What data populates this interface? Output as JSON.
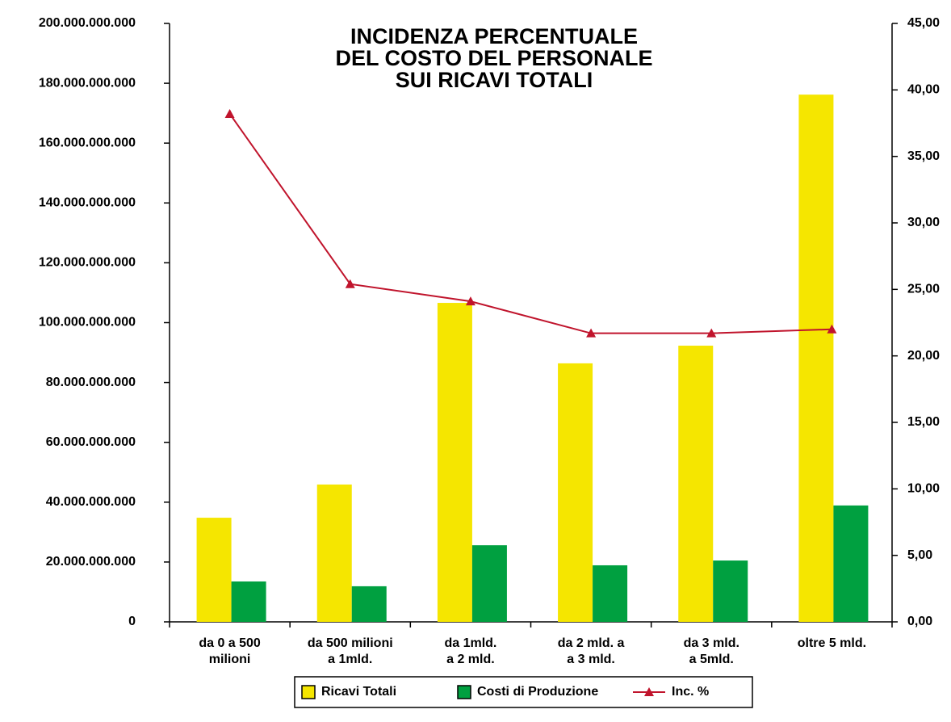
{
  "chart_data": {
    "type": "bar",
    "title": "INCIDENZA PERCENTUALE\nDEL COSTO DEL PERSONALE\nSUI RICAVI TOTALI",
    "categories": [
      "da 0 a 500\nmilioni",
      "da 500 milioni\na 1mld.",
      "da 1mld.\na 2 mld.",
      "da 2 mld. a\na 3 mld.",
      "da 3 mld.\na 5mld.",
      "oltre 5 mld."
    ],
    "series": [
      {
        "name": "Ricavi Totali",
        "color": "#f5e600",
        "type": "bar",
        "values": [
          34800000000,
          45900000000,
          106600000000,
          86400000000,
          92300000000,
          176200000000
        ]
      },
      {
        "name": "Costi di Produzione",
        "color": "#00a040",
        "type": "bar",
        "values": [
          13500000000,
          11900000000,
          25600000000,
          18900000000,
          20500000000,
          38900000000
        ]
      },
      {
        "name": "Inc. %",
        "color": "#c0142c",
        "type": "line",
        "axis": "y2",
        "values": [
          38.2,
          25.4,
          24.1,
          21.7,
          21.7,
          22.0
        ]
      }
    ],
    "ylim": [
      0,
      200000000000
    ],
    "yticks": [
      0,
      {
        "value": 20000000000,
        "label": "20.000.000.000"
      },
      {
        "value": 40000000000,
        "label": "40.000.000.000"
      },
      {
        "value": 60000000000,
        "label": "60.000.000.000"
      },
      {
        "value": 80000000000,
        "label": "80.000.000.000"
      },
      {
        "value": 100000000000,
        "label": "100.000.000.000"
      },
      {
        "value": 120000000000,
        "label": "120.000.000.000"
      },
      {
        "value": 140000000000,
        "label": "140.000.000.000"
      },
      {
        "value": 160000000000,
        "label": "160.000.000.000"
      },
      {
        "value": 180000000000,
        "label": "180.000.000.000"
      },
      {
        "value": 200000000000,
        "label": "200.000.000.000"
      }
    ],
    "y2lim": [
      0,
      45
    ],
    "y2ticks": [
      {
        "value": 0,
        "label": "0,00"
      },
      {
        "value": 5,
        "label": "5,00"
      },
      {
        "value": 10,
        "label": "10,00"
      },
      {
        "value": 15,
        "label": "15,00"
      },
      {
        "value": 20,
        "label": "20,00"
      },
      {
        "value": 25,
        "label": "25,00"
      },
      {
        "value": 30,
        "label": "30,00"
      },
      {
        "value": 35,
        "label": "35,00"
      },
      {
        "value": 40,
        "label": "40,00"
      },
      {
        "value": 45,
        "label": "45,00"
      }
    ],
    "legend": "bottom",
    "grid": false
  }
}
